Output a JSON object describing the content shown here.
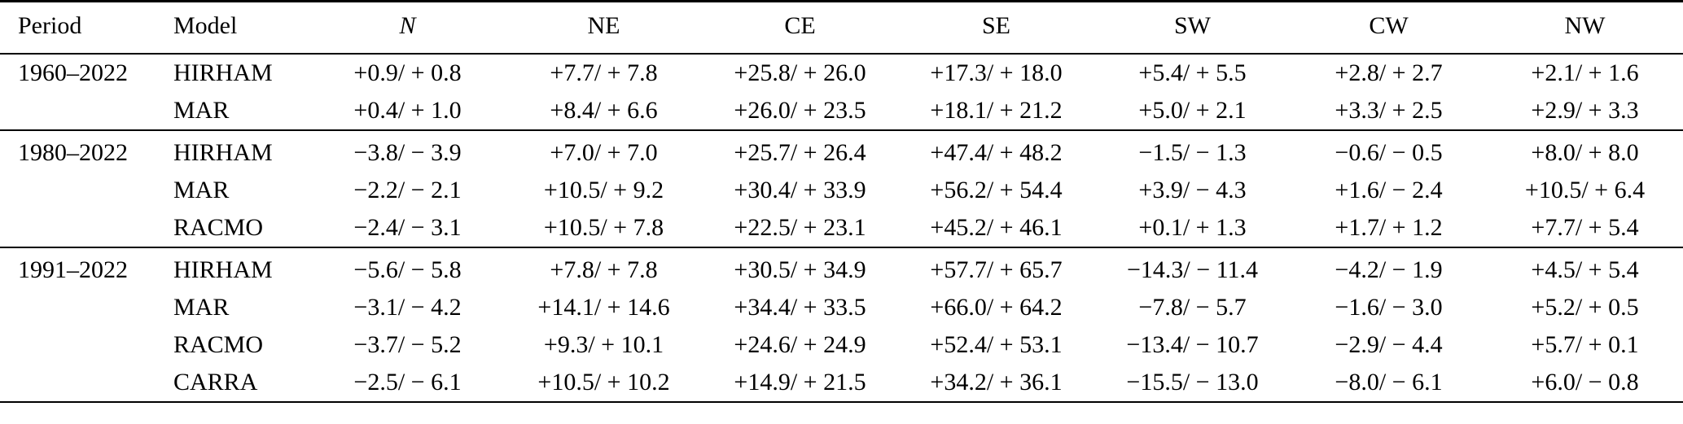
{
  "table": {
    "headers": [
      "Period",
      "Model",
      "N",
      "NE",
      "CE",
      "SE",
      "SW",
      "CW",
      "NW"
    ],
    "rows": [
      {
        "period": "1960–2022",
        "model": "HIRHAM",
        "values": [
          "+0.9/ + 0.8",
          "+7.7/ + 7.8",
          "+25.8/ + 26.0",
          "+17.3/ + 18.0",
          "+5.4/ + 5.5",
          "+2.8/ + 2.7",
          "+2.1/ + 1.6"
        ]
      },
      {
        "period": "",
        "model": "MAR",
        "values": [
          "+0.4/ + 1.0",
          "+8.4/ + 6.6",
          "+26.0/ + 23.5",
          "+18.1/ + 21.2",
          "+5.0/ + 2.1",
          "+3.3/ + 2.5",
          "+2.9/ + 3.3"
        ]
      },
      {
        "period": "1980–2022",
        "model": "HIRHAM",
        "values": [
          "−3.8/ − 3.9",
          "+7.0/ + 7.0",
          "+25.7/ + 26.4",
          "+47.4/ + 48.2",
          "−1.5/ − 1.3",
          "−0.6/ − 0.5",
          "+8.0/ + 8.0"
        ]
      },
      {
        "period": "",
        "model": "MAR",
        "values": [
          "−2.2/ − 2.1",
          "+10.5/ + 9.2",
          "+30.4/ + 33.9",
          "+56.2/ + 54.4",
          "+3.9/ − 4.3",
          "+1.6/ − 2.4",
          "+10.5/ + 6.4"
        ]
      },
      {
        "period": "",
        "model": "RACMO",
        "values": [
          "−2.4/ − 3.1",
          "+10.5/ + 7.8",
          "+22.5/ + 23.1",
          "+45.2/ + 46.1",
          "+0.1/ + 1.3",
          "+1.7/ + 1.2",
          "+7.7/ + 5.4"
        ]
      },
      {
        "period": "1991–2022",
        "model": "HIRHAM",
        "values": [
          "−5.6/ − 5.8",
          "+7.8/ + 7.8",
          "+30.5/ + 34.9",
          "+57.7/ + 65.7",
          "−14.3/ − 11.4",
          "−4.2/ − 1.9",
          "+4.5/ + 5.4"
        ]
      },
      {
        "period": "",
        "model": "MAR",
        "values": [
          "−3.1/ − 4.2",
          "+14.1/ + 14.6",
          "+34.4/ + 33.5",
          "+66.0/ + 64.2",
          "−7.8/ − 5.7",
          "−1.6/ − 3.0",
          "+5.2/ + 0.5"
        ]
      },
      {
        "period": "",
        "model": "RACMO",
        "values": [
          "−3.7/ − 5.2",
          "+9.3/ + 10.1",
          "+24.6/ + 24.9",
          "+52.4/ + 53.1",
          "−13.4/ − 10.7",
          "−2.9/ − 4.4",
          "+5.7/ + 0.1"
        ]
      },
      {
        "period": "",
        "model": "CARRA",
        "values": [
          "−2.5/ − 6.1",
          "+10.5/ + 10.2",
          "+14.9/ + 21.5",
          "+34.2/ + 36.1",
          "−15.5/ − 13.0",
          "−8.0/ − 6.1",
          "+6.0/ − 0.8"
        ]
      }
    ]
  }
}
